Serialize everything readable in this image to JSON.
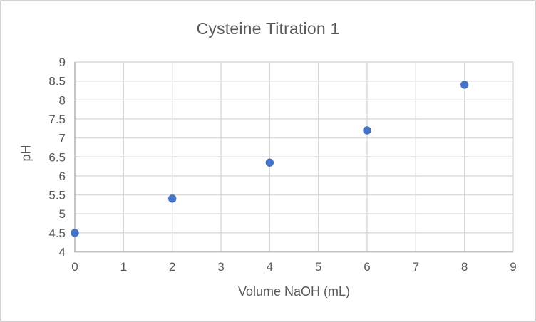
{
  "chart_data": {
    "type": "scatter",
    "title": "Cysteine Titration 1",
    "xlabel": "Volume NaOH (mL)",
    "ylabel": "pH",
    "x": [
      0,
      2,
      4,
      6,
      8
    ],
    "y": [
      4.5,
      5.4,
      6.35,
      7.2,
      8.4
    ],
    "xlim": [
      0,
      9
    ],
    "ylim": [
      4,
      9
    ],
    "x_tick_step": 1,
    "y_tick_step": 0.5,
    "x_ticks": [
      "0",
      "1",
      "2",
      "3",
      "4",
      "5",
      "6",
      "7",
      "8",
      "9"
    ],
    "y_ticks": [
      "4",
      "4.5",
      "5",
      "5.5",
      "6",
      "6.5",
      "7",
      "7.5",
      "8",
      "8.5",
      "9"
    ],
    "grid": true,
    "legend": "none",
    "marker_color": "#4472C4",
    "gridline_color": "#D9D9D9",
    "axis_line_color": "#BFBFBF",
    "text_color": "#595959",
    "frame_border_color": "#D5D3D3",
    "background_color": "#FFFFFF"
  }
}
